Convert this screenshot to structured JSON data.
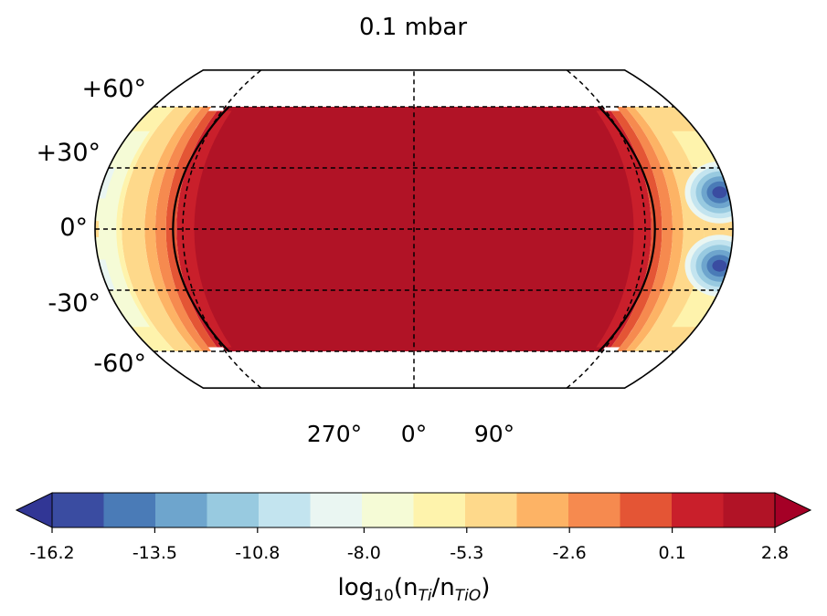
{
  "chart_data": {
    "type": "heatmap",
    "title": "0.1 mbar",
    "projection": "Kavrayskiy VII / pseudocylindrical global map",
    "latitude_tick_labels": [
      "+60°",
      "+30°",
      "0°",
      "-30°",
      "-60°"
    ],
    "latitude_ticks": [
      60,
      30,
      0,
      -30,
      -60
    ],
    "longitude_tick_labels": [
      "270°",
      "0°",
      "90°"
    ],
    "longitude_ticks": [
      270,
      0,
      90
    ],
    "grid": true,
    "grid_style": "dashed",
    "data_latitude_range": [
      -60,
      60
    ],
    "contour_black_lines_near_longitudes": [
      -128,
      128
    ],
    "colorbar": {
      "label_parts": [
        "log",
        "10",
        "(n",
        "Ti",
        "/n",
        "TiO",
        ")"
      ],
      "tick_labels": [
        "-16.2",
        "-13.5",
        "-10.8",
        "-8.0",
        "-5.3",
        "-2.6",
        "0.1",
        "2.8"
      ],
      "tick_values": [
        -16.2,
        -13.5,
        -10.8,
        -8.0,
        -5.3,
        -2.6,
        0.1,
        2.8
      ],
      "levels": [
        -16.2,
        -14.85,
        -13.5,
        -12.15,
        -10.8,
        -9.4,
        -8.0,
        -6.65,
        -5.3,
        -3.95,
        -2.6,
        -1.25,
        0.1,
        1.45,
        2.8
      ],
      "colors": [
        "#3a4ca1",
        "#4a7bb7",
        "#6ea5cd",
        "#98cae0",
        "#c3e4ef",
        "#eaf6f2",
        "#f5fbd6",
        "#fef3ac",
        "#fed98b",
        "#fdb365",
        "#f68a4f",
        "#e45535",
        "#c91f2b",
        "#b11326"
      ],
      "extend_low_color": "#313695",
      "extend_high_color": "#a50026",
      "extend": "both",
      "orientation": "horizontal"
    },
    "bands": [
      {
        "lon": [
          -130,
          130
        ],
        "lat": [
          -60,
          60
        ],
        "level_index": 13
      },
      {
        "lon": [
          -134,
          -124
        ],
        "lat": [
          -58,
          58
        ],
        "level_index": 12
      },
      {
        "lon": [
          124,
          134
        ],
        "lat": [
          -58,
          58
        ],
        "level_index": 12
      },
      {
        "lon": [
          -140,
          -134
        ],
        "lat": [
          -58,
          58
        ],
        "level_index": 11
      },
      {
        "lon": [
          134,
          140
        ],
        "lat": [
          -58,
          58
        ],
        "level_index": 11
      },
      {
        "lon": [
          -146,
          -140
        ],
        "lat": [
          -60,
          60
        ],
        "level_index": 10
      },
      {
        "lon": [
          140,
          146
        ],
        "lat": [
          -60,
          60
        ],
        "level_index": 10
      },
      {
        "lon": [
          -152,
          -146
        ],
        "lat": [
          -60,
          60
        ],
        "level_index": 9
      },
      {
        "lon": [
          146,
          152
        ],
        "lat": [
          -60,
          60
        ],
        "level_index": 9
      },
      {
        "lon": [
          -165,
          -152
        ],
        "lat": [
          -60,
          60
        ],
        "level_index": 8
      },
      {
        "lon": [
          152,
          180
        ],
        "lat": [
          -60,
          60
        ],
        "level_index": 8
      },
      {
        "lon": [
          -180,
          -165
        ],
        "lat": [
          -60,
          60
        ],
        "level_index": 7
      },
      {
        "lon": [
          -180,
          -168
        ],
        "lat": [
          -48,
          48
        ],
        "level_index": 6
      },
      {
        "lon": [
          -180,
          -176
        ],
        "lat": [
          -30,
          -15
        ],
        "level_index": 5
      },
      {
        "lon": [
          -180,
          -176
        ],
        "lat": [
          15,
          30
        ],
        "level_index": 5
      },
      {
        "lon": [
          -180,
          -178
        ],
        "lat": [
          -4,
          4
        ],
        "level_index": 8
      },
      {
        "lon": [
          164,
          180
        ],
        "lat": [
          -48,
          48
        ],
        "level_index": 7
      },
      {
        "lon": [
          164,
          180
        ],
        "lat": [
          -6,
          6
        ],
        "level_index": 8
      }
    ],
    "blobs": [
      {
        "lon": 172,
        "lat": 18,
        "level_indices": [
          5,
          4,
          3,
          2,
          1,
          0
        ]
      },
      {
        "lon": 172,
        "lat": -18,
        "level_indices": [
          5,
          4,
          3,
          2,
          1,
          0
        ]
      }
    ]
  }
}
